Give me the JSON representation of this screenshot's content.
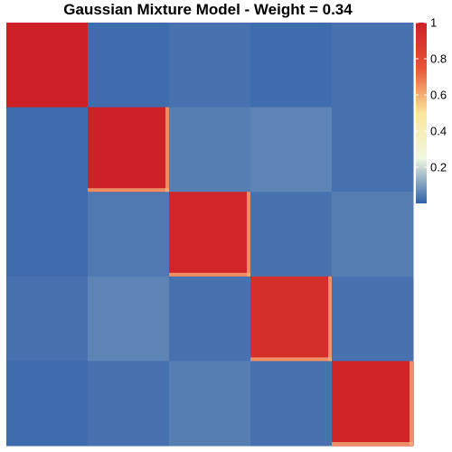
{
  "chart_data": {
    "type": "heatmap",
    "title": "Gaussian Mixture Model - Weight = 0.34",
    "xlabel": "",
    "ylabel": "",
    "n_blocks": 5,
    "block_values": [
      [
        1.0,
        0.02,
        0.03,
        0.02,
        0.03
      ],
      [
        0.02,
        0.99,
        0.05,
        0.06,
        0.03
      ],
      [
        0.02,
        0.04,
        0.97,
        0.03,
        0.05
      ],
      [
        0.03,
        0.06,
        0.03,
        0.93,
        0.03
      ],
      [
        0.02,
        0.03,
        0.05,
        0.03,
        0.98
      ]
    ],
    "colorbar": {
      "min": 0.0,
      "max": 1.0,
      "ticks": [
        0.2,
        0.4,
        0.6,
        0.8,
        1.0
      ],
      "tick_labels": [
        "0.2",
        "0.4",
        "0.6",
        "0.8",
        "1"
      ],
      "colors": [
        "#3060A8",
        "#F0F8E0",
        "#FCE79A",
        "#E85535",
        "#CD2027"
      ]
    },
    "grid": false,
    "legend": "right"
  }
}
